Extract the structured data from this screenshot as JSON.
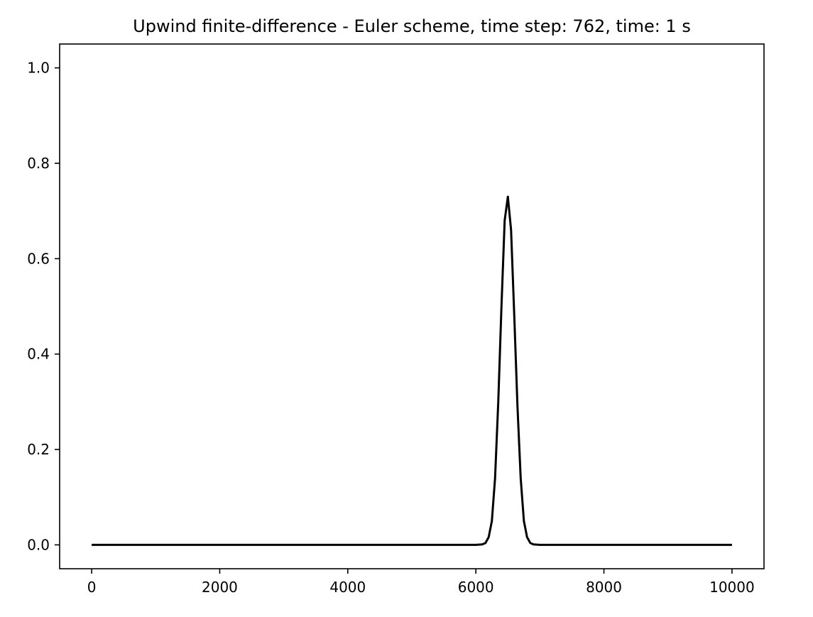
{
  "chart_data": {
    "type": "line",
    "title": "Upwind finite-difference - Euler scheme, time step: 762, time: 1 s",
    "xlabel": "",
    "ylabel": "",
    "xlim": [
      -500,
      10500
    ],
    "ylim": [
      -0.05,
      1.05
    ],
    "x_ticks": [
      0,
      2000,
      4000,
      6000,
      8000,
      10000
    ],
    "x_tick_labels": [
      "0",
      "2000",
      "4000",
      "6000",
      "8000",
      "10000"
    ],
    "y_ticks": [
      0.0,
      0.2,
      0.4,
      0.6,
      0.8,
      1.0
    ],
    "y_tick_labels": [
      "0.0",
      "0.2",
      "0.4",
      "0.6",
      "0.8",
      "1.0"
    ],
    "grid": false,
    "legend": "none",
    "series": [
      {
        "color": "#000000",
        "x": [
          0,
          1000,
          2000,
          3000,
          4000,
          5000,
          6000,
          6100,
          6150,
          6200,
          6250,
          6300,
          6350,
          6400,
          6450,
          6500,
          6550,
          6600,
          6650,
          6700,
          6750,
          6800,
          6850,
          6900,
          7000,
          8000,
          9000,
          10000
        ],
        "y": [
          0,
          0,
          0,
          0,
          0,
          0,
          0,
          0.001,
          0.004,
          0.016,
          0.05,
          0.14,
          0.3,
          0.5,
          0.68,
          0.73,
          0.66,
          0.48,
          0.29,
          0.14,
          0.05,
          0.016,
          0.004,
          0.001,
          0,
          0,
          0,
          0
        ]
      }
    ]
  }
}
